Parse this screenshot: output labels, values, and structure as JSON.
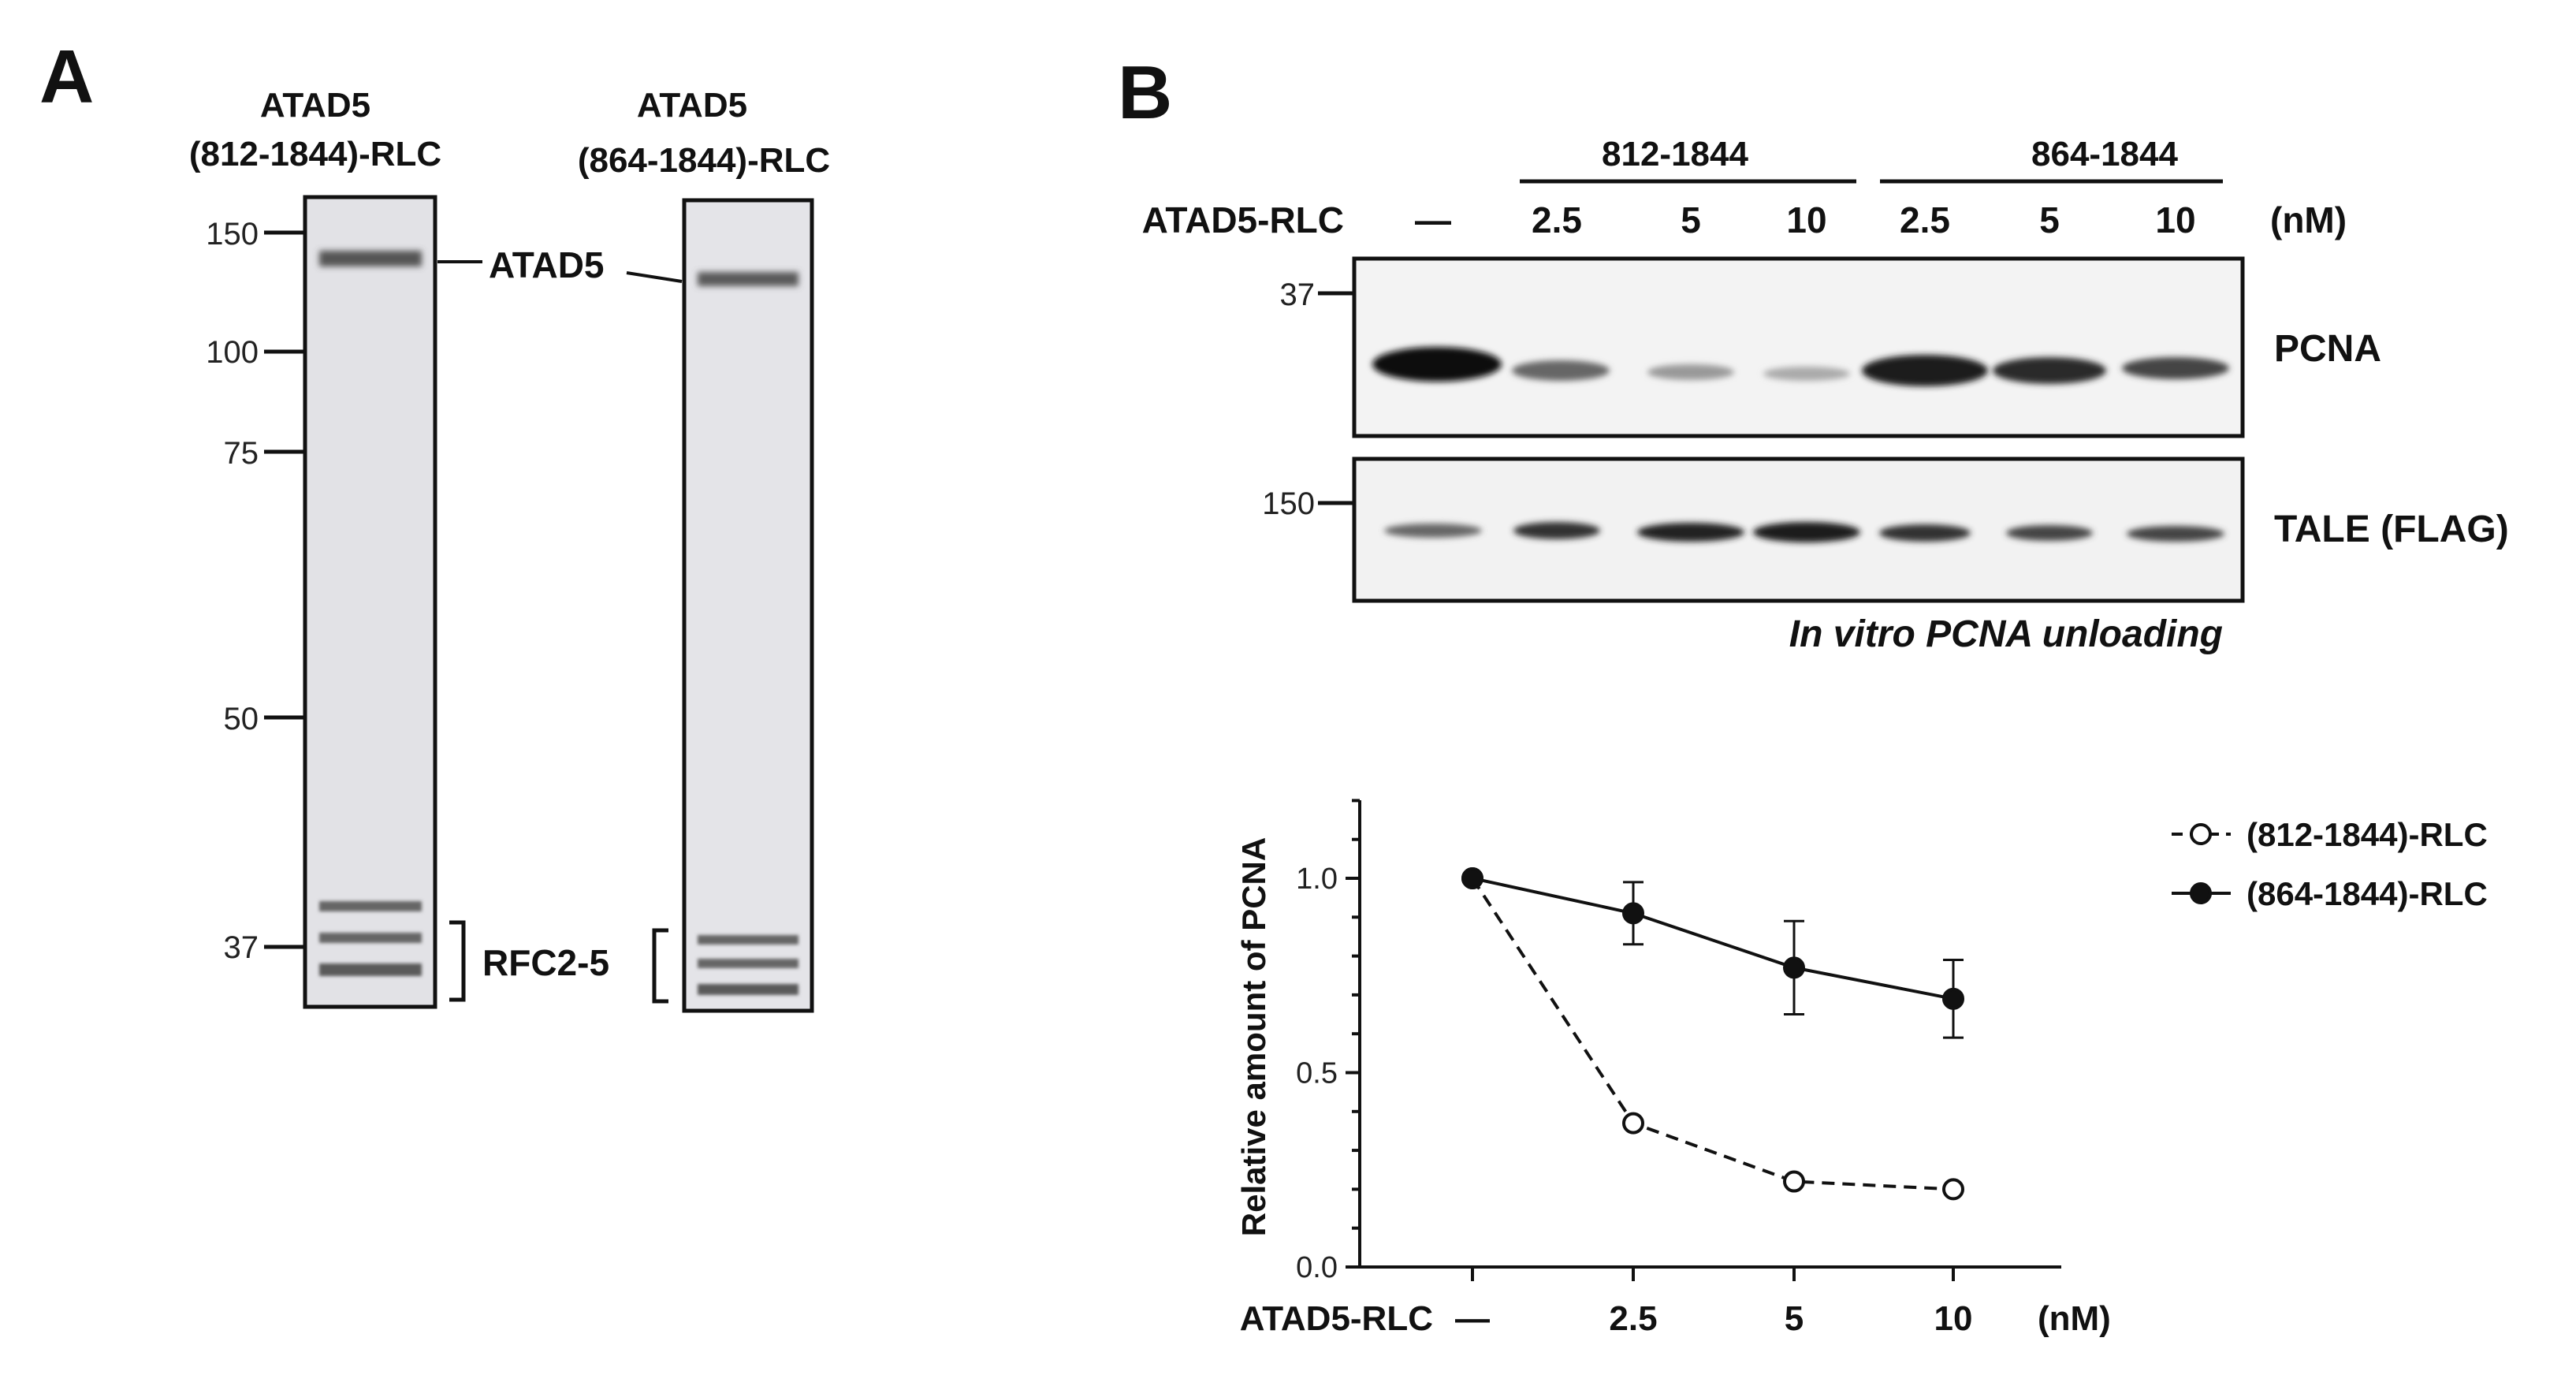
{
  "panel_a": {
    "label": "A",
    "lane1_title": [
      "ATAD5",
      "(812-1844)-RLC"
    ],
    "lane2_title": [
      "ATAD5",
      "(864-1844)-RLC"
    ],
    "marker_labels": [
      "150",
      "100",
      "75",
      "50",
      "37"
    ],
    "band_labels": {
      "atad5": "ATAD5",
      "rfc": "RFC2-5"
    }
  },
  "panel_b": {
    "label": "B",
    "group_labels": [
      "812-1844",
      "864-1844"
    ],
    "row_label": "ATAD5-RLC",
    "lane_labels": [
      "—",
      "2.5",
      "5",
      "10",
      "2.5",
      "5",
      "10"
    ],
    "unit": "(nM)",
    "blot_markers": {
      "pcna": "37",
      "tale": "150"
    },
    "blot_labels": {
      "pcna": "PCNA",
      "tale": "TALE (FLAG)"
    },
    "assay_caption": "In vitro PCNA unloading"
  },
  "chart_data": {
    "type": "line",
    "ylabel": "Relative amount of PCNA",
    "xlabel": "ATAD5-RLC",
    "xunit": "(nM)",
    "categories": [
      "—",
      "2.5",
      "5",
      "10"
    ],
    "yticks": [
      "0.0",
      "0.5",
      "1.0"
    ],
    "ylim": [
      0,
      1.2
    ],
    "series": [
      {
        "name": "(812-1844)-RLC",
        "style": "dashed-open-circle",
        "values": [
          1.0,
          0.37,
          0.22,
          0.2
        ],
        "errors": [
          0,
          0,
          0,
          0
        ]
      },
      {
        "name": "(864-1844)-RLC",
        "style": "solid-filled-circle",
        "values": [
          1.0,
          0.91,
          0.77,
          0.69
        ],
        "errors": [
          0,
          0.08,
          0.12,
          0.1
        ]
      }
    ],
    "legend_position": "top-right"
  }
}
